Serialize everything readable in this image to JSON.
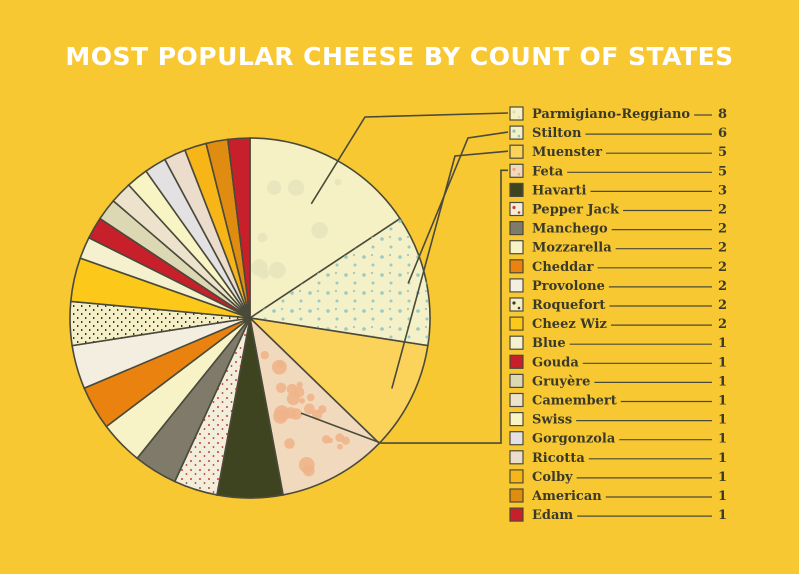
{
  "chart_data": {
    "type": "pie",
    "title": "MOST POPULAR CHEESE BY COUNT OF STATES",
    "slices": [
      {
        "label": "Parmigiano-Reggiano",
        "value": 8,
        "color": "#f5f1c5",
        "pattern": "bubbles"
      },
      {
        "label": "Stilton",
        "value": 6,
        "color": "#f4f0c8",
        "pattern": "blue-dots"
      },
      {
        "label": "Muenster",
        "value": 5,
        "color": "#fcd35a",
        "pattern": "none"
      },
      {
        "label": "Feta",
        "value": 5,
        "color": "#f1d9be",
        "pattern": "orange-bubbles"
      },
      {
        "label": "Havarti",
        "value": 3,
        "color": "#3e4420",
        "pattern": "none"
      },
      {
        "label": "Pepper Jack",
        "value": 2,
        "color": "#f3eedb",
        "pattern": "red-specks"
      },
      {
        "label": "Manchego",
        "value": 2,
        "color": "#7f7a6a",
        "pattern": "none"
      },
      {
        "label": "Mozzarella",
        "value": 2,
        "color": "#f7f3c6",
        "pattern": "none"
      },
      {
        "label": "Cheddar",
        "value": 2,
        "color": "#e9820e",
        "pattern": "none"
      },
      {
        "label": "Provolone",
        "value": 2,
        "color": "#f3eedf",
        "pattern": "none"
      },
      {
        "label": "Roquefort",
        "value": 2,
        "color": "#f4efc6",
        "pattern": "black-specks"
      },
      {
        "label": "Cheez Wiz",
        "value": 2,
        "color": "#fcc81a",
        "pattern": "none"
      },
      {
        "label": "Blue",
        "value": 1,
        "color": "#f5f1ce",
        "pattern": "none"
      },
      {
        "label": "Gouda",
        "value": 1,
        "color": "#c8202a",
        "pattern": "none"
      },
      {
        "label": "Gruyère",
        "value": 1,
        "color": "#dcd8b4",
        "pattern": "none"
      },
      {
        "label": "Camembert",
        "value": 1,
        "color": "#ede2cc",
        "pattern": "none"
      },
      {
        "label": "Swiss",
        "value": 1,
        "color": "#f8f4c3",
        "pattern": "none"
      },
      {
        "label": "Gorgonzola",
        "value": 1,
        "color": "#e3e1e1",
        "pattern": "none"
      },
      {
        "label": "Ricotta",
        "value": 1,
        "color": "#ecdccb",
        "pattern": "none"
      },
      {
        "label": "Colby",
        "value": 1,
        "color": "#f7b518",
        "pattern": "none"
      },
      {
        "label": "American",
        "value": 1,
        "color": "#e08c10",
        "pattern": "none"
      },
      {
        "label": "Edam",
        "value": 1,
        "color": "#c8202a",
        "pattern": "none"
      }
    ]
  }
}
